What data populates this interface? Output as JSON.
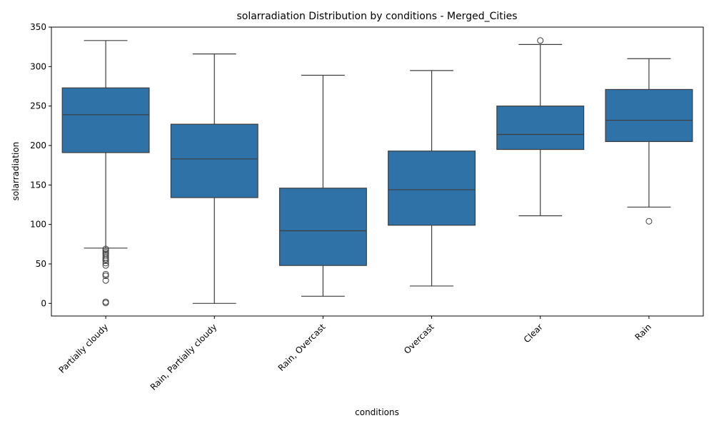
{
  "chart_data": {
    "type": "box",
    "title": "solarradiation Distribution by conditions - Merged_Cities",
    "xlabel": "conditions",
    "ylabel": "solarradiation",
    "ylim": [
      -16,
      350
    ],
    "yticks": [
      0,
      50,
      100,
      150,
      200,
      250,
      300,
      350
    ],
    "grid": false,
    "box_color": "#2f72a8",
    "line_color": "#3d3d3d",
    "categories": [
      "Partially cloudy",
      "Rain, Partially cloudy",
      "Rain, Overcast",
      "Overcast",
      "Clear",
      "Rain"
    ],
    "boxes": [
      {
        "category": "Partially cloudy",
        "whisker_low": 70,
        "q1": 191,
        "median": 239,
        "q3": 273,
        "whisker_high": 333,
        "outliers": [
          69,
          67,
          65,
          63,
          61,
          58,
          56,
          54,
          51,
          48,
          37,
          35,
          29,
          2,
          0.5
        ]
      },
      {
        "category": "Rain, Partially cloudy",
        "whisker_low": 0,
        "q1": 134,
        "median": 183,
        "q3": 227,
        "whisker_high": 316,
        "outliers": []
      },
      {
        "category": "Rain, Overcast",
        "whisker_low": 9,
        "q1": 48,
        "median": 92,
        "q3": 146,
        "whisker_high": 289,
        "outliers": []
      },
      {
        "category": "Overcast",
        "whisker_low": 22,
        "q1": 99,
        "median": 144,
        "q3": 193,
        "whisker_high": 295,
        "outliers": []
      },
      {
        "category": "Clear",
        "whisker_low": 111,
        "q1": 195,
        "median": 214,
        "q3": 250,
        "whisker_high": 328,
        "outliers": [
          333
        ]
      },
      {
        "category": "Rain",
        "whisker_low": 122,
        "q1": 205,
        "median": 232,
        "q3": 271,
        "whisker_high": 310,
        "outliers": [
          104
        ]
      }
    ]
  }
}
